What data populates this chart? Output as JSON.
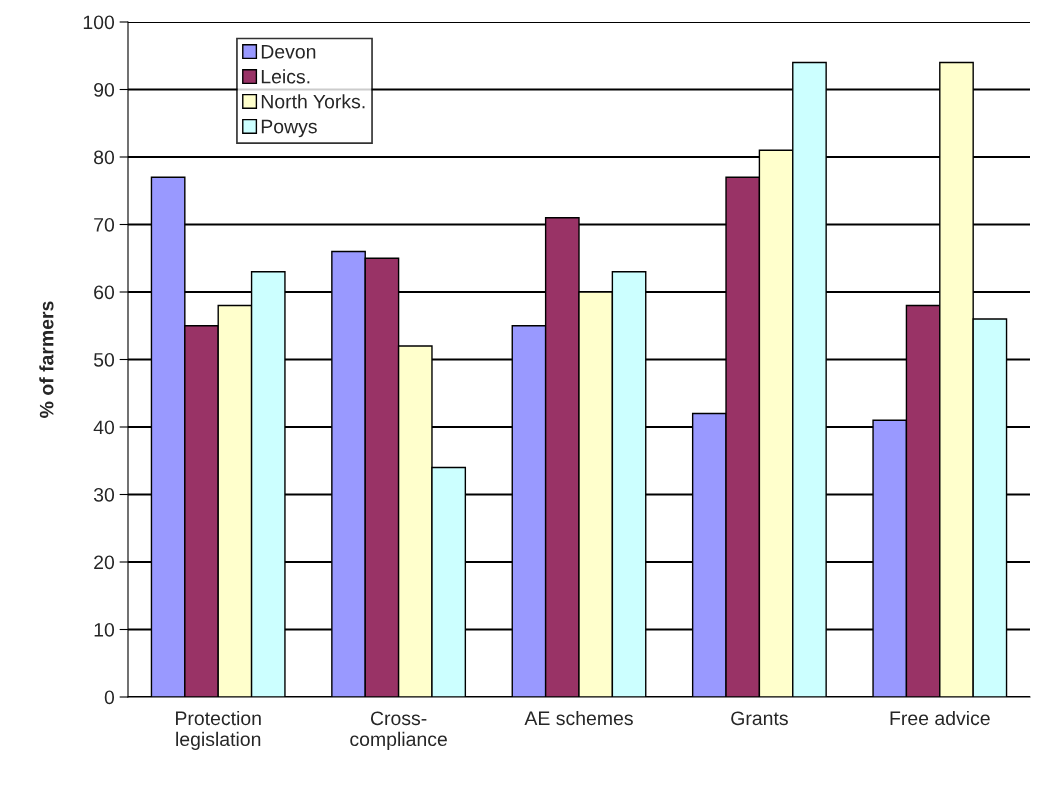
{
  "chart_data": {
    "type": "bar",
    "ylabel": "% of farmers",
    "categories": [
      "Protection\nlegislation",
      "Cross-\ncompliance",
      "AE schemes",
      "Grants",
      "Free advice"
    ],
    "series": [
      {
        "name": "Devon",
        "color": "#9999ff",
        "values": [
          77,
          66,
          55,
          42,
          41
        ]
      },
      {
        "name": "Leics.",
        "color": "#993366",
        "values": [
          55,
          65,
          71,
          77,
          58
        ]
      },
      {
        "name": "North Yorks.",
        "color": "#ffffcc",
        "values": [
          58,
          52,
          60,
          81,
          94
        ]
      },
      {
        "name": "Powys",
        "color": "#ccffff",
        "values": [
          63,
          34,
          63,
          94,
          56
        ]
      }
    ],
    "ylim": [
      0,
      100
    ],
    "yticks": [
      0,
      10,
      20,
      30,
      40,
      50,
      60,
      70,
      80,
      90,
      100
    ],
    "grid": "y",
    "legend": "top left"
  }
}
